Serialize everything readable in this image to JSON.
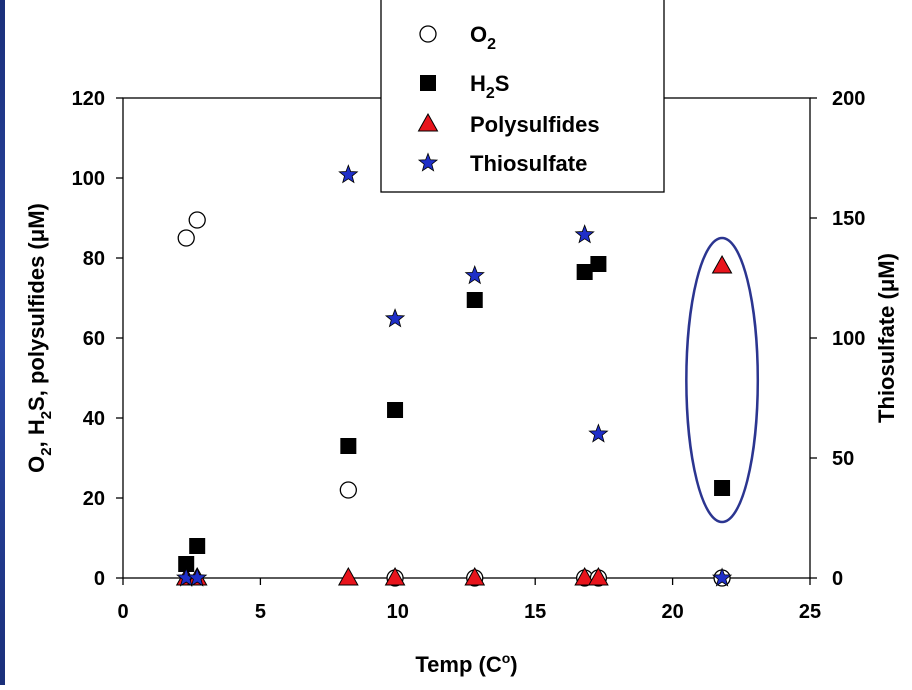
{
  "chart_data": {
    "type": "scatter",
    "x_axis": {
      "label_main": "Temp (C",
      "label_sup": "o",
      "label_end": ")",
      "range": [
        0,
        25
      ],
      "ticks": [
        0,
        5,
        10,
        15,
        20,
        25
      ]
    },
    "y_left": {
      "label_runs": [
        {
          "t": "O",
          "s": "main"
        },
        {
          "t": "2",
          "s": "sub"
        },
        {
          "t": ", H",
          "s": "main"
        },
        {
          "t": "2",
          "s": "sub"
        },
        {
          "t": "S, polysulfides (",
          "s": "main"
        },
        {
          "t": "μ",
          "s": "main"
        },
        {
          "t": "M)",
          "s": "main"
        }
      ],
      "range": [
        0,
        120
      ],
      "ticks": [
        0,
        20,
        40,
        60,
        80,
        100,
        120
      ]
    },
    "y_right": {
      "label": "Thiosulfate (μM)",
      "range": [
        0,
        200
      ],
      "ticks": [
        0,
        50,
        100,
        150,
        200
      ]
    },
    "series": [
      {
        "name": "O2",
        "legend_main": "O",
        "legend_sub": "2",
        "marker": "open-circle",
        "color": "#ffffff",
        "axis": "left",
        "points": [
          [
            2.3,
            85
          ],
          [
            2.7,
            89.5
          ],
          [
            8.2,
            22
          ],
          [
            9.9,
            0
          ],
          [
            12.8,
            0
          ],
          [
            16.8,
            0
          ],
          [
            17.3,
            0
          ],
          [
            21.8,
            0
          ]
        ]
      },
      {
        "name": "H2S",
        "legend_main": "H",
        "legend_sub": "2",
        "legend_end": "S",
        "marker": "square",
        "color": "#000000",
        "axis": "left",
        "points": [
          [
            2.3,
            3.5
          ],
          [
            2.7,
            8
          ],
          [
            8.2,
            33
          ],
          [
            9.9,
            42
          ],
          [
            12.8,
            69.5
          ],
          [
            16.8,
            76.5
          ],
          [
            17.3,
            78.5
          ],
          [
            21.8,
            22.5
          ]
        ]
      },
      {
        "name": "Polysulfides",
        "legend_main": "Polysulfides",
        "marker": "triangle",
        "color": "#e8141c",
        "axis": "left",
        "points": [
          [
            2.3,
            0
          ],
          [
            2.7,
            0
          ],
          [
            8.2,
            0
          ],
          [
            9.9,
            0
          ],
          [
            12.8,
            0
          ],
          [
            16.8,
            0
          ],
          [
            17.3,
            0
          ],
          [
            21.8,
            78
          ]
        ]
      },
      {
        "name": "Thiosulfate",
        "legend_main": "Thiosulfate",
        "marker": "star",
        "color": "#1f2fc8",
        "axis": "right",
        "points": [
          [
            2.3,
            0
          ],
          [
            2.7,
            0
          ],
          [
            8.2,
            168
          ],
          [
            9.9,
            108
          ],
          [
            12.8,
            126
          ],
          [
            16.8,
            143
          ],
          [
            17.3,
            60
          ],
          [
            21.8,
            0
          ]
        ]
      }
    ],
    "highlight": {
      "shape": "ellipse",
      "color": "#2b3590",
      "x_center": 21.8,
      "x_half_width": 1.3,
      "y_range_left": [
        14,
        85
      ]
    },
    "grid": false,
    "legend_position": "top-center"
  }
}
